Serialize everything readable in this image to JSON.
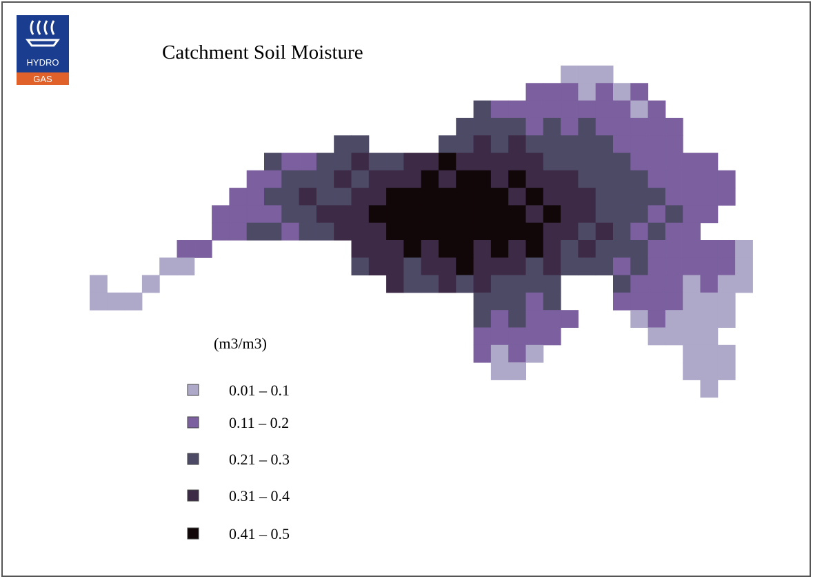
{
  "header": {
    "logo": {
      "brand": "HYDRO",
      "sub": "GAS"
    },
    "title": "Catchment Soil Moisture"
  },
  "legend": {
    "unit": "(m3/m3)",
    "items": [
      {
        "label": "0.01 – 0.1",
        "color": "#aea8c9"
      },
      {
        "label": "0.11 – 0.2",
        "color": "#7b5f9e"
      },
      {
        "label": "0.21 – 0.3",
        "color": "#4d4a66"
      },
      {
        "label": "0.31 – 0.4",
        "color": "#3d2a46"
      },
      {
        "label": "0.41 – 0.5",
        "color": "#120708"
      }
    ]
  }
}
